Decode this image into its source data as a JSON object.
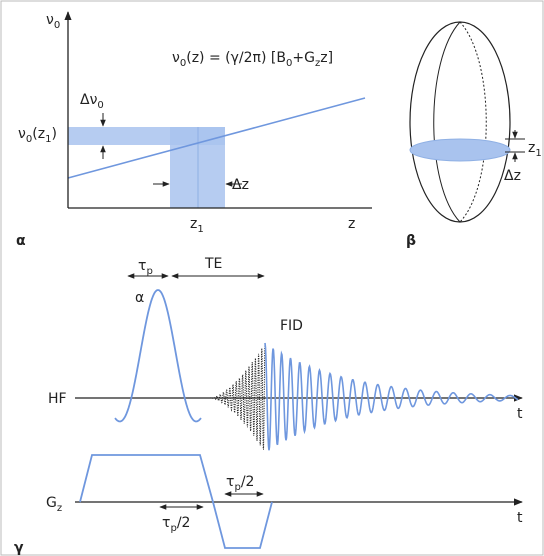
{
  "panel_a": {
    "label": [
      "α"
    ],
    "y_axis": [
      "ν",
      {
        "sub": "0"
      }
    ],
    "x_axis": [
      "z"
    ],
    "equation": [
      "ν",
      {
        "sub": "0"
      },
      "(z) = (γ/2π) [B",
      {
        "sub": "0"
      },
      "+G",
      {
        "sub": "z"
      },
      "z]"
    ],
    "delta_nu": [
      "Δν",
      {
        "sub": "0"
      }
    ],
    "nu_z1": [
      "ν",
      {
        "sub": "0"
      },
      "(z",
      {
        "sub": "1"
      },
      ")"
    ],
    "delta_z": [
      "Δz"
    ],
    "z1": [
      "z",
      {
        "sub": "1"
      }
    ]
  },
  "panel_b": {
    "label": [
      "β"
    ],
    "z1": [
      "z",
      {
        "sub": "1"
      }
    ],
    "delta_z": [
      "Δz"
    ]
  },
  "panel_c": {
    "label": [
      "γ"
    ],
    "tau_p": [
      "τ",
      {
        "sub": "p"
      }
    ],
    "te": [
      "TE"
    ],
    "alpha": [
      "α"
    ],
    "fid": [
      "FID"
    ],
    "hf": [
      "HF"
    ],
    "t_hf": [
      "t"
    ],
    "gz": [
      "G",
      {
        "sub": "z"
      }
    ],
    "tau_half_left": [
      "τ",
      {
        "sub": "p"
      },
      "/2"
    ],
    "tau_half_right": [
      "τ",
      {
        "sub": "p"
      },
      "/2"
    ],
    "t_gz": [
      "t"
    ]
  }
}
